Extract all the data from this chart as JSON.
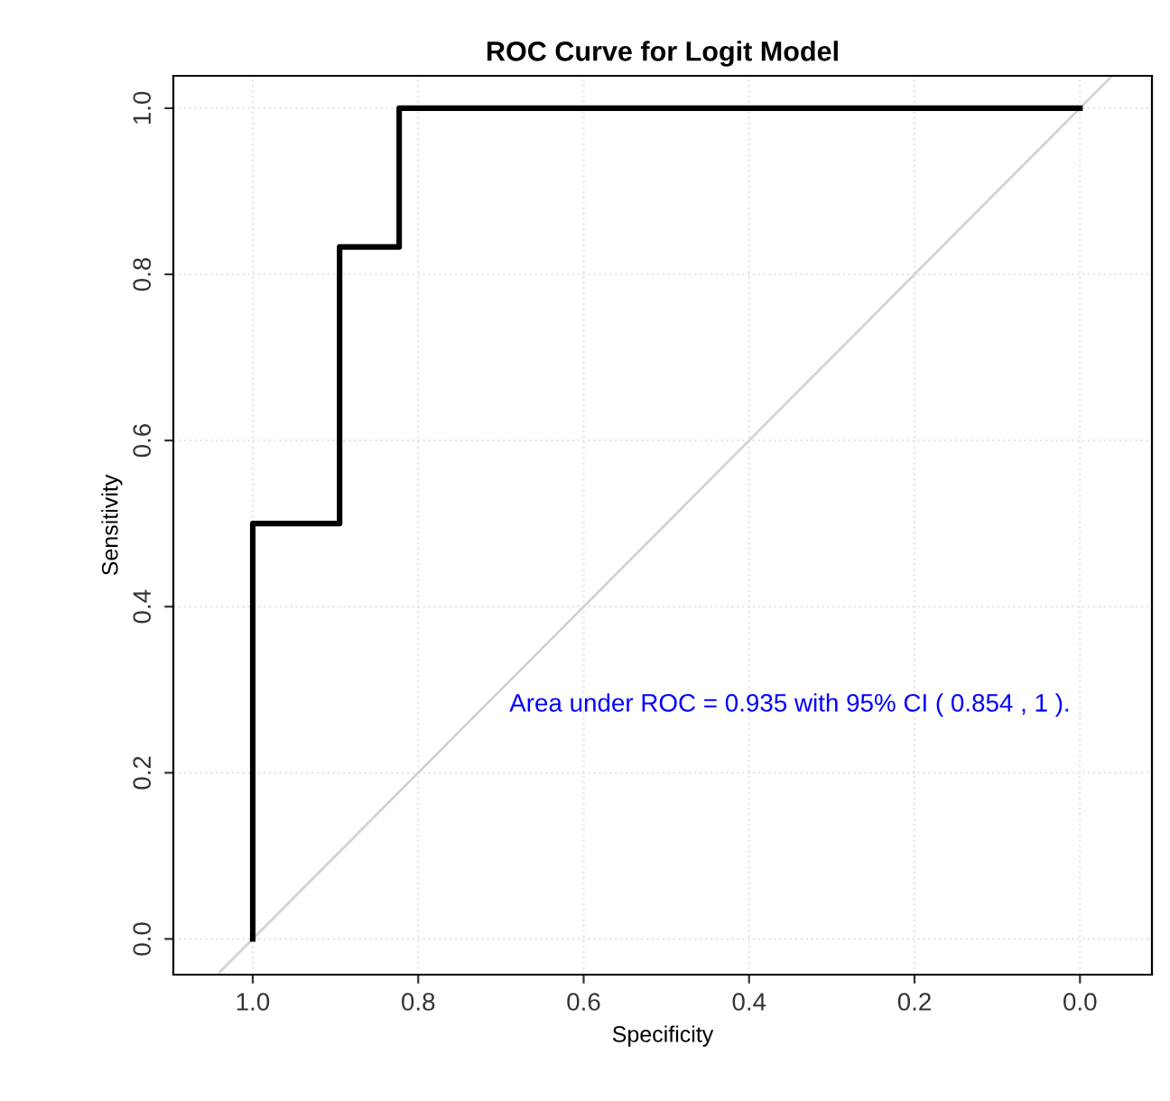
{
  "chart_data": {
    "type": "line",
    "title": "ROC Curve for Logit Model",
    "xlabel": "Specificity",
    "ylabel": "Sensitivity",
    "xlim": [
      1.096,
      -0.087
    ],
    "ylim": [
      -0.043,
      1.039
    ],
    "xticks": [
      {
        "value": 1.0,
        "label": "1.0"
      },
      0.8,
      0.6,
      0.4,
      0.2,
      {
        "value": 0.0,
        "label": "0.0"
      }
    ],
    "yticks": [
      {
        "value": 0.0,
        "label": "0.0"
      },
      0.2,
      0.4,
      0.6,
      0.8,
      {
        "value": 1.0,
        "label": "1.0"
      }
    ],
    "grid": true,
    "marker": "none",
    "line_style": "solid",
    "series": [
      {
        "color": "#d3d3d3",
        "x": [
          1.04,
          -0.039
        ],
        "values": [
          -0.04,
          1.039
        ]
      },
      {
        "color": "#000000",
        "x": [
          1.0,
          1.0,
          0.895,
          0.895,
          0.823,
          0.823,
          0.0
        ],
        "values": [
          0.0,
          0.5,
          0.5,
          0.833,
          0.833,
          1.0,
          1.0
        ]
      }
    ],
    "annotations": [
      "Area under ROC = 0.935 with 95% CI ( 0.854 , 1 )."
    ]
  }
}
